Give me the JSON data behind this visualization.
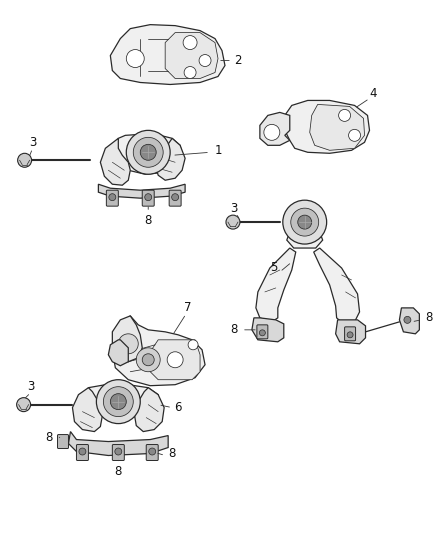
{
  "background_color": "#ffffff",
  "line_color": "#2a2a2a",
  "label_color": "#111111",
  "figsize": [
    4.38,
    5.33
  ],
  "dpi": 100,
  "lw_main": 0.9,
  "lw_thin": 0.55,
  "part_face": "#f0f0f0",
  "part_face2": "#e8e8e8",
  "part_face3": "#d8d8d8",
  "white": "#ffffff"
}
